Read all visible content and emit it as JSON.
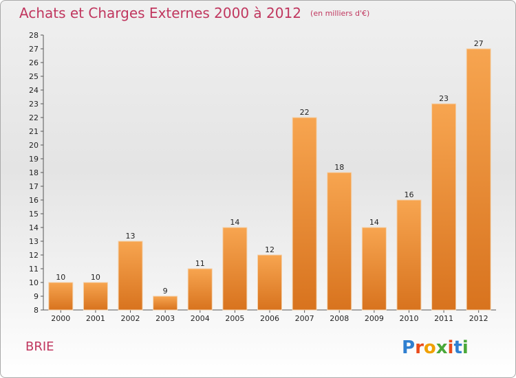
{
  "header": {
    "title": "Achats et Charges Externes 2000 à 2012",
    "unit": "(en milliers d'€)"
  },
  "footer": {
    "commune": "BRIE",
    "logo_text": "Proxiti"
  },
  "colors": {
    "title": "#c0365e",
    "bar_light": "#f7a550",
    "bar_dark": "#d8731e",
    "axis": "#555555",
    "logo": [
      "#2f7fd0",
      "#e94b1b",
      "#f0a000",
      "#4aa83a",
      "#e94b1b",
      "#2f7fd0",
      "#4aa83a"
    ]
  },
  "chart_data": {
    "type": "bar",
    "title": "Achats et Charges Externes 2000 à 2012",
    "subtitle": "(en milliers d'€)",
    "xlabel": "",
    "ylabel": "",
    "categories": [
      "2000",
      "2001",
      "2002",
      "2003",
      "2004",
      "2005",
      "2006",
      "2007",
      "2008",
      "2009",
      "2010",
      "2011",
      "2012"
    ],
    "values": [
      10,
      10,
      13,
      9,
      11,
      14,
      12,
      22,
      18,
      14,
      16,
      23,
      27
    ],
    "ylim": [
      8,
      28
    ],
    "yticks": [
      8,
      9,
      10,
      11,
      12,
      13,
      14,
      15,
      16,
      17,
      18,
      19,
      20,
      21,
      22,
      23,
      24,
      25,
      26,
      27,
      28
    ],
    "grid": false,
    "legend": "none"
  }
}
